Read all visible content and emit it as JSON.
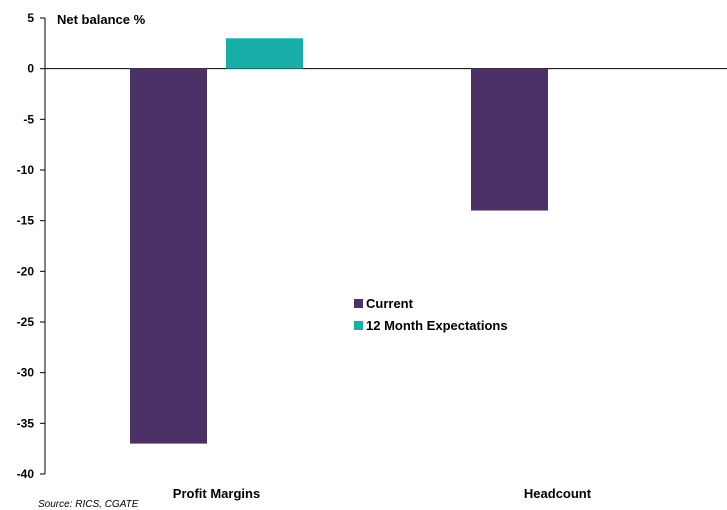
{
  "chart_data": {
    "type": "bar",
    "categories": [
      "Profit Margins",
      "Headcount"
    ],
    "series": [
      {
        "name": "Current",
        "values": [
          -37,
          -14
        ],
        "color": "#4b3166"
      },
      {
        "name": "12 Month Expectations",
        "values": [
          3,
          null
        ],
        "color": "#18afa8"
      }
    ],
    "ylabel": "Net balance %",
    "ylim": [
      -40,
      5
    ],
    "yticks": [
      5,
      0,
      -5,
      -10,
      -15,
      -20,
      -25,
      -30,
      -35,
      -40
    ],
    "grid": false,
    "legend_position": "center",
    "source": "Source: RICS, CGATE"
  }
}
